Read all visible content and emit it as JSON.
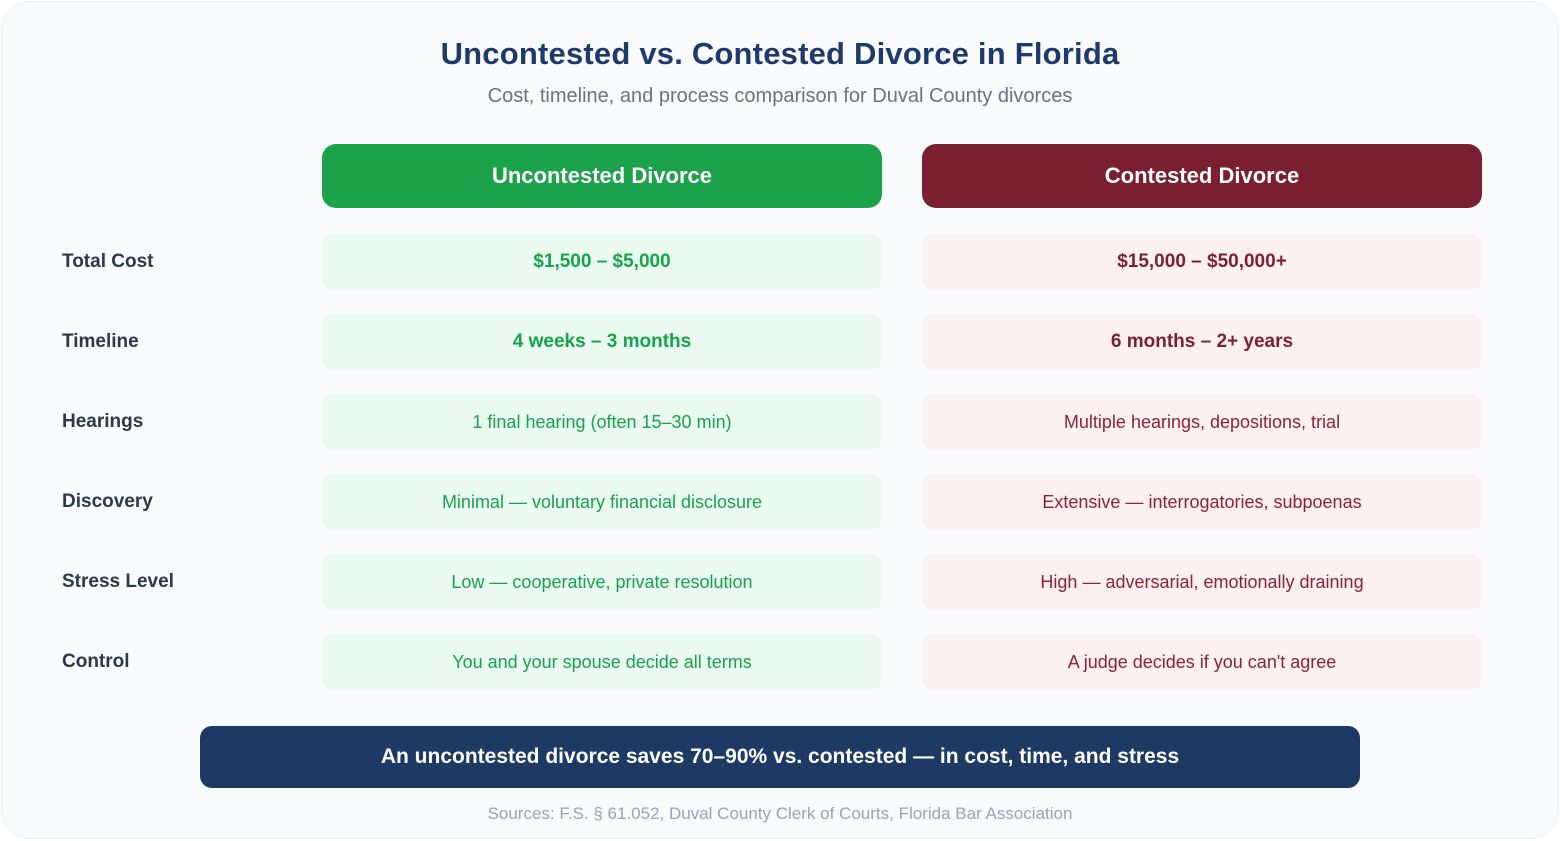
{
  "header": {
    "title": "Uncontested vs. Contested Divorce in Florida",
    "subtitle": "Cost, timeline, and process comparison for Duval County divorces"
  },
  "columns": {
    "uncontested": {
      "label": "Uncontested Divorce",
      "color": "#1ba24a",
      "cell_bg": "#eafaf0",
      "text_color": "#17a34b"
    },
    "contested": {
      "label": "Contested Divorce",
      "color": "#7a1f2f",
      "cell_bg": "#fdf0f0",
      "text_color": "#8b2337"
    }
  },
  "rows": [
    {
      "label": "Total Cost",
      "uncontested": "$1,500 – $5,000",
      "contested": "$15,000 – $50,000+"
    },
    {
      "label": "Timeline",
      "uncontested": "4 weeks – 3 months",
      "contested": "6 months – 2+ years"
    },
    {
      "label": "Hearings",
      "uncontested": "1 final hearing (often 15–30 min)",
      "contested": "Multiple hearings, depositions, trial"
    },
    {
      "label": "Discovery",
      "uncontested": "Minimal — voluntary financial disclosure",
      "contested": "Extensive — interrogatories, subpoenas"
    },
    {
      "label": "Stress Level",
      "uncontested": "Low — cooperative, private resolution",
      "contested": "High — adversarial, emotionally draining"
    },
    {
      "label": "Control",
      "uncontested": "You and your spouse decide all terms",
      "contested": "A judge decides if you can't agree"
    }
  ],
  "banner": {
    "text": "An uncontested divorce saves 70–90% vs. contested — in cost, time, and stress",
    "color": "#1e3a64"
  },
  "footer": {
    "text": "Sources: F.S. § 61.052, Duval County Clerk of Courts, Florida Bar Association"
  },
  "chart_data": {
    "type": "table",
    "title": "Uncontested vs. Contested Divorce in Florida",
    "subtitle": "Cost, timeline, and process comparison for Duval County divorces",
    "row_headers": [
      "Total Cost",
      "Timeline",
      "Hearings",
      "Discovery",
      "Stress Level",
      "Control"
    ],
    "columns": [
      "Uncontested Divorce",
      "Contested Divorce"
    ],
    "cells": [
      [
        "$1,500 – $5,000",
        "$15,000 – $50,000+"
      ],
      [
        "4 weeks – 3 months",
        "6 months – 2+ years"
      ],
      [
        "1 final hearing (often 15–30 min)",
        "Multiple hearings, depositions, trial"
      ],
      [
        "Minimal — voluntary financial disclosure",
        "Extensive — interrogatories, subpoenas"
      ],
      [
        "Low — cooperative, private resolution",
        "High — adversarial, emotionally draining"
      ],
      [
        "You and your spouse decide all terms",
        "A judge decides if you can't agree"
      ]
    ],
    "annotations": [
      "An uncontested divorce saves 70–90% vs. contested — in cost, time, and stress",
      "Sources: F.S. § 61.052, Duval County Clerk of Courts, Florida Bar Association"
    ]
  }
}
